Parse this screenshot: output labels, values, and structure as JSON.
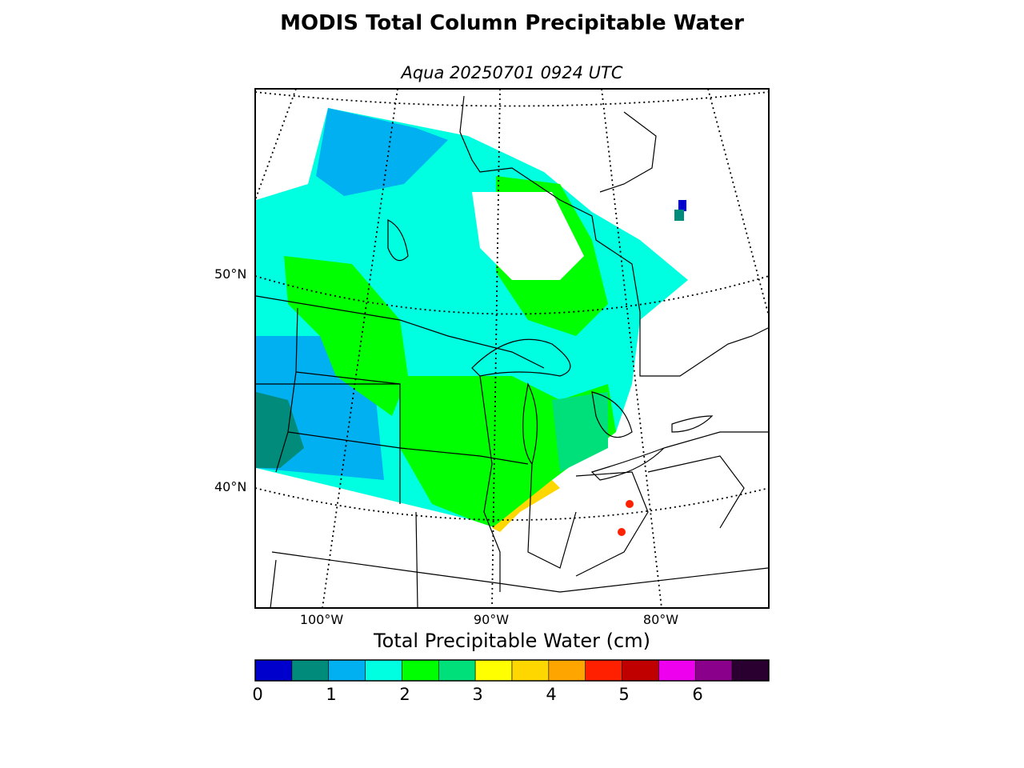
{
  "title": "MODIS Total Column Precipitable Water",
  "subtitle": "Aqua 20250701 0924 UTC",
  "latitude_labels": [
    "50°N",
    "40°N"
  ],
  "longitude_labels": [
    "100°W",
    "90°W",
    "80°W"
  ],
  "colorbar": {
    "title": "Total Precipitable Water (cm)",
    "ticks": [
      "0",
      "1",
      "2",
      "3",
      "4",
      "5",
      "6"
    ],
    "colors": [
      "#0000cd",
      "#008b7a",
      "#00b0f0",
      "#00ffe0",
      "#00ff00",
      "#00e07a",
      "#ffff00",
      "#ffd700",
      "#ffa500",
      "#ff2000",
      "#c00000",
      "#ee00ee",
      "#8b008b",
      "#2a0030"
    ]
  }
}
